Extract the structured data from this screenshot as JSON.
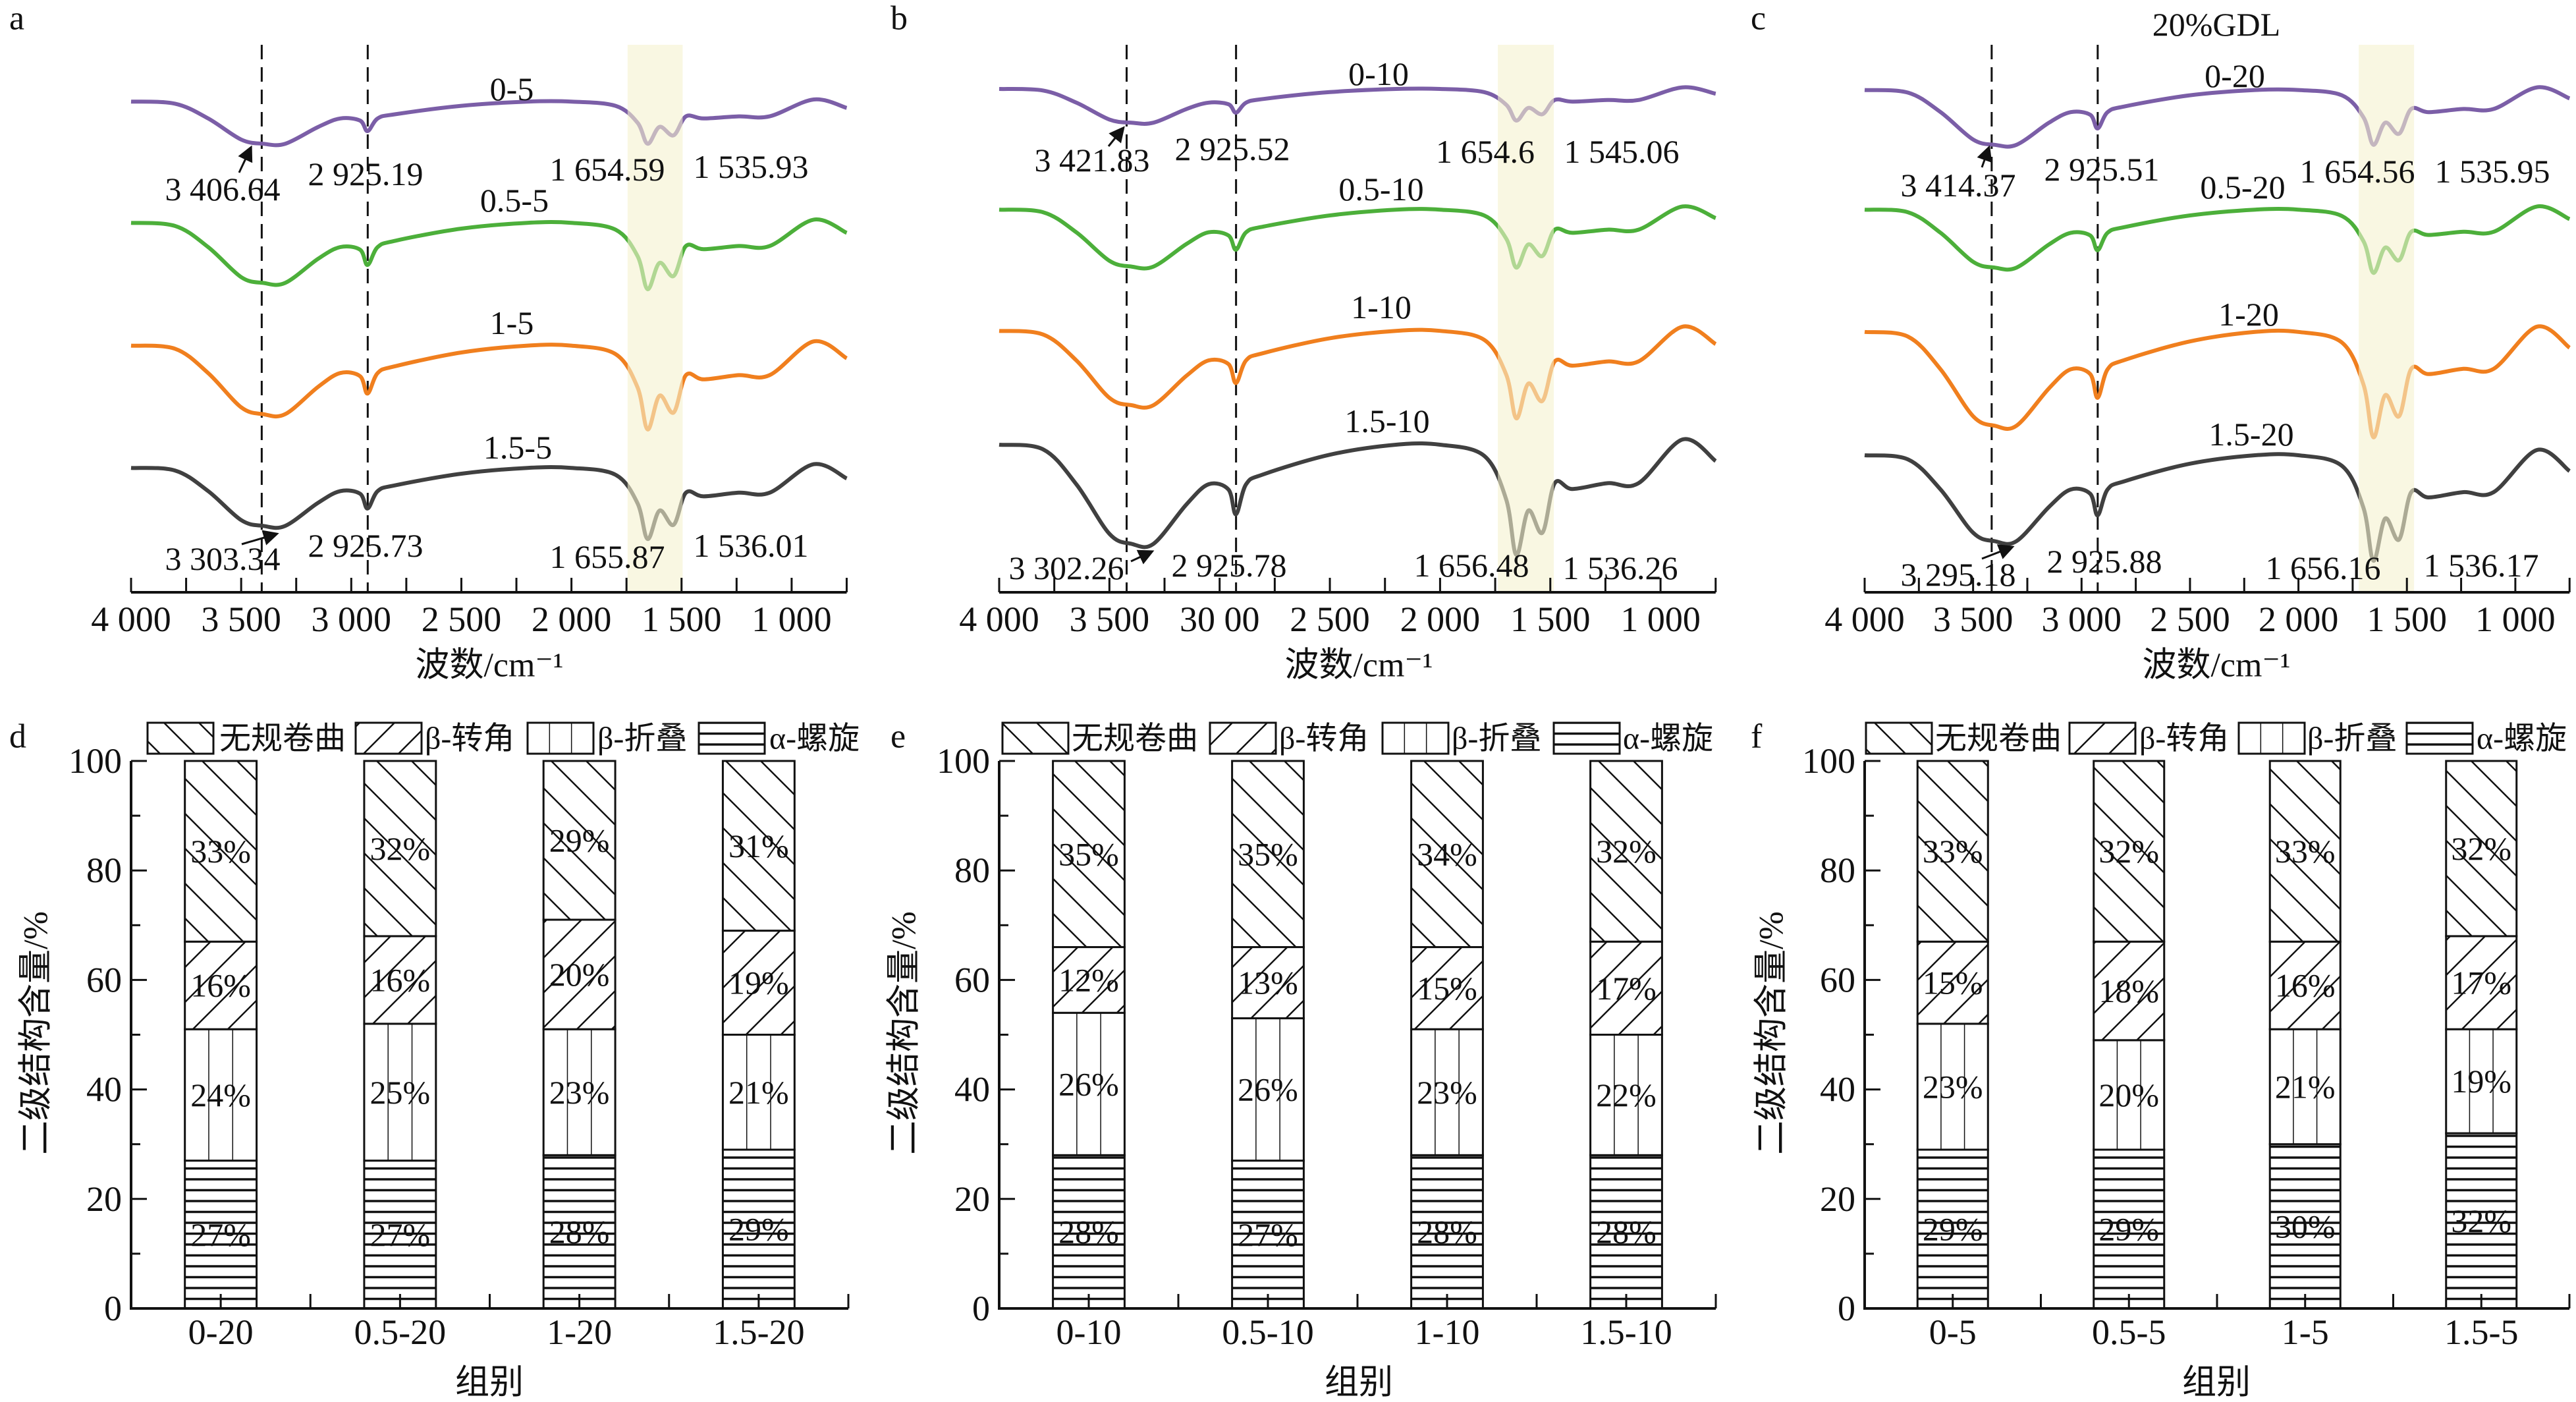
{
  "chart_data": [
    {
      "type": "line",
      "panel_label": "a",
      "title": "",
      "xlabel": "波数/cm⁻¹",
      "xlim": [
        4000,
        750
      ],
      "xtick_values": [
        4000,
        3500,
        3000,
        2500,
        2000,
        1500,
        1000
      ],
      "xtick_labels": [
        "4 000",
        "3 500",
        "3 000",
        "2 500",
        "2 000",
        "1 500",
        "1 000"
      ],
      "highlight_band": [
        1745,
        1495
      ],
      "highlight_color": "#f5f2cf",
      "dashed_lines": [
        3406.64,
        2925.19
      ],
      "x": [
        4000,
        3800,
        3650,
        3500,
        3400,
        3300,
        3150,
        3050,
        2960,
        2926,
        2880,
        2800,
        2500,
        2200,
        2000,
        1800,
        1700,
        1654,
        1600,
        1536,
        1480,
        1400,
        1240,
        1100,
        900,
        750
      ],
      "series": [
        {
          "name": "0-5",
          "color": "#7b5ea7",
          "y": [
            93.1,
            92.7,
            89.9,
            85.9,
            85.1,
            85.1,
            88.3,
            89.9,
            89.5,
            87.5,
            89.9,
            90.7,
            92.3,
            93.1,
            93.1,
            92.3,
            89.1,
            85.1,
            88.3,
            86.7,
            90.3,
            89.9,
            90.3,
            90.3,
            93.5,
            91.9
          ]
        },
        {
          "name": "0.5-5",
          "color": "#4caf3a",
          "y": [
            70.1,
            69.5,
            65.5,
            59.8,
            58.7,
            58.7,
            63.3,
            65.5,
            65.0,
            62.1,
            65.5,
            66.7,
            69.0,
            70.1,
            70.1,
            68.8,
            63.8,
            57.5,
            62.5,
            60.0,
            65.7,
            65.1,
            65.7,
            65.7,
            70.7,
            68.2
          ]
        },
        {
          "name": "1-5",
          "color": "#f07f1e",
          "y": [
            46.8,
            46.2,
            41.6,
            35.1,
            33.8,
            33.8,
            39.0,
            41.6,
            41.0,
            37.7,
            41.6,
            42.9,
            45.5,
            46.8,
            46.8,
            45.2,
            38.9,
            30.9,
            37.3,
            34.1,
            41.2,
            40.4,
            41.2,
            41.2,
            47.6,
            44.4
          ]
        },
        {
          "name": "1.5-5",
          "color": "#404040",
          "y": [
            23.6,
            23.1,
            19.2,
            13.7,
            12.6,
            12.6,
            17.0,
            19.2,
            18.7,
            15.9,
            19.2,
            20.3,
            22.5,
            23.6,
            23.6,
            22.3,
            16.9,
            10.1,
            15.5,
            12.8,
            18.9,
            18.2,
            18.9,
            18.9,
            24.3,
            21.6
          ]
        }
      ],
      "annotations": [
        {
          "text": "3 406.64"
        },
        {
          "text": "2 925.19"
        },
        {
          "text": "1 654.59"
        },
        {
          "text": "1 535.93"
        },
        {
          "text": "3 303.34"
        },
        {
          "text": "2 925.73"
        },
        {
          "text": "1 655.87"
        },
        {
          "text": "1 536.01"
        }
      ]
    },
    {
      "type": "line",
      "panel_label": "b",
      "title": "",
      "xlabel": "波数/cm⁻¹",
      "xlim": [
        4000,
        750
      ],
      "xtick_values": [
        4000,
        3500,
        3000,
        2500,
        2000,
        1500,
        1000
      ],
      "xtick_labels": [
        "4 000",
        "3 500",
        "30 00",
        "2 500",
        "2 000",
        "1 500",
        "1 000"
      ],
      "highlight_band": [
        1738,
        1484
      ],
      "highlight_color": "#f5f2cf",
      "dashed_lines": [
        3421.83,
        2925.52
      ],
      "x": [
        4000,
        3800,
        3650,
        3500,
        3400,
        3300,
        3150,
        3050,
        2960,
        2926,
        2880,
        2800,
        2500,
        2200,
        2000,
        1800,
        1700,
        1654,
        1600,
        1536,
        1480,
        1400,
        1240,
        1100,
        900,
        750
      ],
      "series": [
        {
          "name": "0-10",
          "color": "#7b5ea7",
          "y": [
            95.5,
            95.2,
            92.9,
            89.7,
            89.1,
            89.1,
            91.7,
            92.9,
            92.6,
            91.0,
            92.9,
            93.6,
            94.9,
            95.5,
            95.5,
            94.9,
            92.5,
            89.5,
            91.9,
            90.7,
            93.4,
            93.1,
            93.4,
            93.4,
            95.8,
            94.6
          ]
        },
        {
          "name": "0.5-10",
          "color": "#4caf3a",
          "y": [
            72.6,
            72.1,
            68.3,
            62.9,
            61.8,
            61.8,
            66.1,
            68.3,
            67.7,
            65.0,
            68.3,
            69.4,
            71.5,
            72.6,
            72.6,
            71.5,
            67.1,
            61.6,
            66.0,
            63.8,
            68.8,
            68.2,
            68.8,
            68.8,
            73.2,
            71.0
          ]
        },
        {
          "name": "1-10",
          "color": "#f07f1e",
          "y": [
            49.6,
            48.9,
            44.0,
            36.9,
            35.5,
            35.5,
            41.1,
            44.0,
            43.3,
            39.7,
            44.0,
            45.4,
            48.2,
            49.6,
            49.6,
            47.9,
            41.3,
            33.0,
            39.6,
            36.3,
            43.8,
            43.0,
            43.8,
            43.8,
            50.4,
            47.1
          ]
        },
        {
          "name": "1.5-10",
          "color": "#404040",
          "y": [
            28.0,
            27.1,
            20.5,
            11.1,
            9.2,
            9.2,
            16.7,
            20.5,
            19.5,
            14.8,
            20.5,
            22.4,
            26.1,
            28.0,
            28.0,
            25.9,
            17.6,
            7.1,
            15.5,
            11.3,
            20.7,
            19.6,
            20.7,
            20.7,
            29.0,
            24.9
          ]
        }
      ],
      "annotations": [
        {
          "text": "3 421.83"
        },
        {
          "text": "2 925.52"
        },
        {
          "text": "1 654.6"
        },
        {
          "text": "1 545.06"
        },
        {
          "text": "3 302.26"
        },
        {
          "text": "2 925.78"
        },
        {
          "text": "1 656.48"
        },
        {
          "text": "1 536.26"
        }
      ]
    },
    {
      "type": "line",
      "panel_label": "c",
      "title": "20%GDL",
      "xlabel": "波数/cm⁻¹",
      "xlim": [
        4000,
        750
      ],
      "xtick_values": [
        4000,
        3500,
        3000,
        2500,
        2000,
        1500,
        1000
      ],
      "xtick_labels": [
        "4 000",
        "3 500",
        "3 000",
        "2 500",
        "2 000",
        "1 500",
        "1 000"
      ],
      "highlight_band": [
        1722,
        1467
      ],
      "highlight_color": "#f5f2cf",
      "dashed_lines": [
        3414.37,
        2925.51
      ],
      "x": [
        4000,
        3800,
        3650,
        3500,
        3400,
        3300,
        3150,
        3050,
        2960,
        2926,
        2880,
        2800,
        2500,
        2200,
        2000,
        1800,
        1700,
        1654,
        1600,
        1536,
        1480,
        1400,
        1240,
        1100,
        900,
        750
      ],
      "series": [
        {
          "name": "0-20",
          "color": "#7b5ea7",
          "y": [
            95.3,
            94.8,
            91.1,
            85.9,
            84.9,
            84.9,
            89.1,
            91.1,
            90.6,
            88.0,
            91.1,
            92.2,
            94.3,
            95.3,
            95.3,
            94.3,
            90.1,
            84.9,
            89.1,
            87.0,
            91.7,
            91.1,
            91.7,
            91.7,
            95.8,
            93.7
          ]
        },
        {
          "name": "0.5-20",
          "color": "#4caf3a",
          "y": [
            72.6,
            72.1,
            68.2,
            62.7,
            61.6,
            61.6,
            66.0,
            68.2,
            67.7,
            64.9,
            68.2,
            69.3,
            71.5,
            72.6,
            72.6,
            71.4,
            66.6,
            60.6,
            65.4,
            63.0,
            68.4,
            67.8,
            68.4,
            68.4,
            73.2,
            70.8
          ]
        },
        {
          "name": "1-20",
          "color": "#f07f1e",
          "y": [
            49.4,
            48.5,
            42.3,
            33.4,
            31.6,
            31.6,
            38.7,
            42.3,
            41.4,
            36.9,
            42.3,
            44.1,
            47.6,
            49.4,
            49.4,
            47.4,
            39.4,
            29.4,
            37.4,
            33.4,
            42.4,
            41.4,
            42.4,
            42.4,
            50.4,
            46.4
          ]
        },
        {
          "name": "1.5-20",
          "color": "#404040",
          "y": [
            26.0,
            25.2,
            19.5,
            11.3,
            9.7,
            9.7,
            16.2,
            19.5,
            18.7,
            14.6,
            19.5,
            21.1,
            24.4,
            26.0,
            26.0,
            24.0,
            16.0,
            6.0,
            14.0,
            10.0,
            19.0,
            18.0,
            19.0,
            19.0,
            27.0,
            23.0
          ]
        }
      ],
      "annotations": [
        {
          "text": "3 414.37"
        },
        {
          "text": "2 925.51"
        },
        {
          "text": "1 654.56"
        },
        {
          "text": "1 535.95"
        },
        {
          "text": "3 295.18"
        },
        {
          "text": "2 925.88"
        },
        {
          "text": "1 656.16"
        },
        {
          "text": "1 536.17"
        }
      ]
    },
    {
      "type": "bar",
      "stacked": true,
      "panel_label": "d",
      "xlabel": "组别",
      "ylabel": "二级结构含量/%",
      "ylim": [
        0,
        100
      ],
      "yticks": [
        0,
        20,
        40,
        60,
        80,
        100
      ],
      "legend_position": "top",
      "categories": [
        "0-20",
        "0.5-20",
        "1-20",
        "1.5-20"
      ],
      "series": [
        {
          "name": "α-螺旋",
          "pattern": "horizontal-lines",
          "values": [
            27,
            27,
            28,
            29
          ]
        },
        {
          "name": "β-折叠",
          "pattern": "vertical-lines",
          "values": [
            24,
            25,
            23,
            21
          ]
        },
        {
          "name": "β-转角",
          "pattern": "forward-diagonal",
          "values": [
            16,
            16,
            20,
            19
          ]
        },
        {
          "name": "无规卷曲",
          "pattern": "back-diagonal",
          "values": [
            33,
            32,
            29,
            31
          ]
        }
      ]
    },
    {
      "type": "bar",
      "stacked": true,
      "panel_label": "e",
      "xlabel": "组别",
      "ylabel": "二级结构含量/%",
      "ylim": [
        0,
        100
      ],
      "yticks": [
        0,
        20,
        40,
        60,
        80,
        100
      ],
      "legend_position": "top",
      "categories": [
        "0-10",
        "0.5-10",
        "1-10",
        "1.5-10"
      ],
      "series": [
        {
          "name": "α-螺旋",
          "pattern": "horizontal-lines",
          "values": [
            28,
            27,
            28,
            28
          ]
        },
        {
          "name": "β-折叠",
          "pattern": "vertical-lines",
          "values": [
            26,
            26,
            23,
            22
          ]
        },
        {
          "name": "β-转角",
          "pattern": "forward-diagonal",
          "values": [
            12,
            13,
            15,
            17
          ]
        },
        {
          "name": "无规卷曲",
          "pattern": "back-diagonal",
          "values": [
            35,
            35,
            34,
            32
          ]
        }
      ]
    },
    {
      "type": "bar",
      "stacked": true,
      "panel_label": "f",
      "xlabel": "组别",
      "ylabel": "二级结构含量/%",
      "ylim": [
        0,
        100
      ],
      "yticks": [
        0,
        20,
        40,
        60,
        80,
        100
      ],
      "legend_position": "top",
      "categories": [
        "0-5",
        "0.5-5",
        "1-5",
        "1.5-5"
      ],
      "series": [
        {
          "name": "α-螺旋",
          "pattern": "horizontal-lines",
          "values": [
            29,
            29,
            30,
            32
          ]
        },
        {
          "name": "β-折叠",
          "pattern": "vertical-lines",
          "values": [
            23,
            20,
            21,
            19
          ]
        },
        {
          "name": "β-转角",
          "pattern": "forward-diagonal",
          "values": [
            15,
            18,
            16,
            17
          ]
        },
        {
          "name": "无规卷曲",
          "pattern": "back-diagonal",
          "values": [
            33,
            32,
            33,
            32
          ]
        }
      ]
    }
  ]
}
